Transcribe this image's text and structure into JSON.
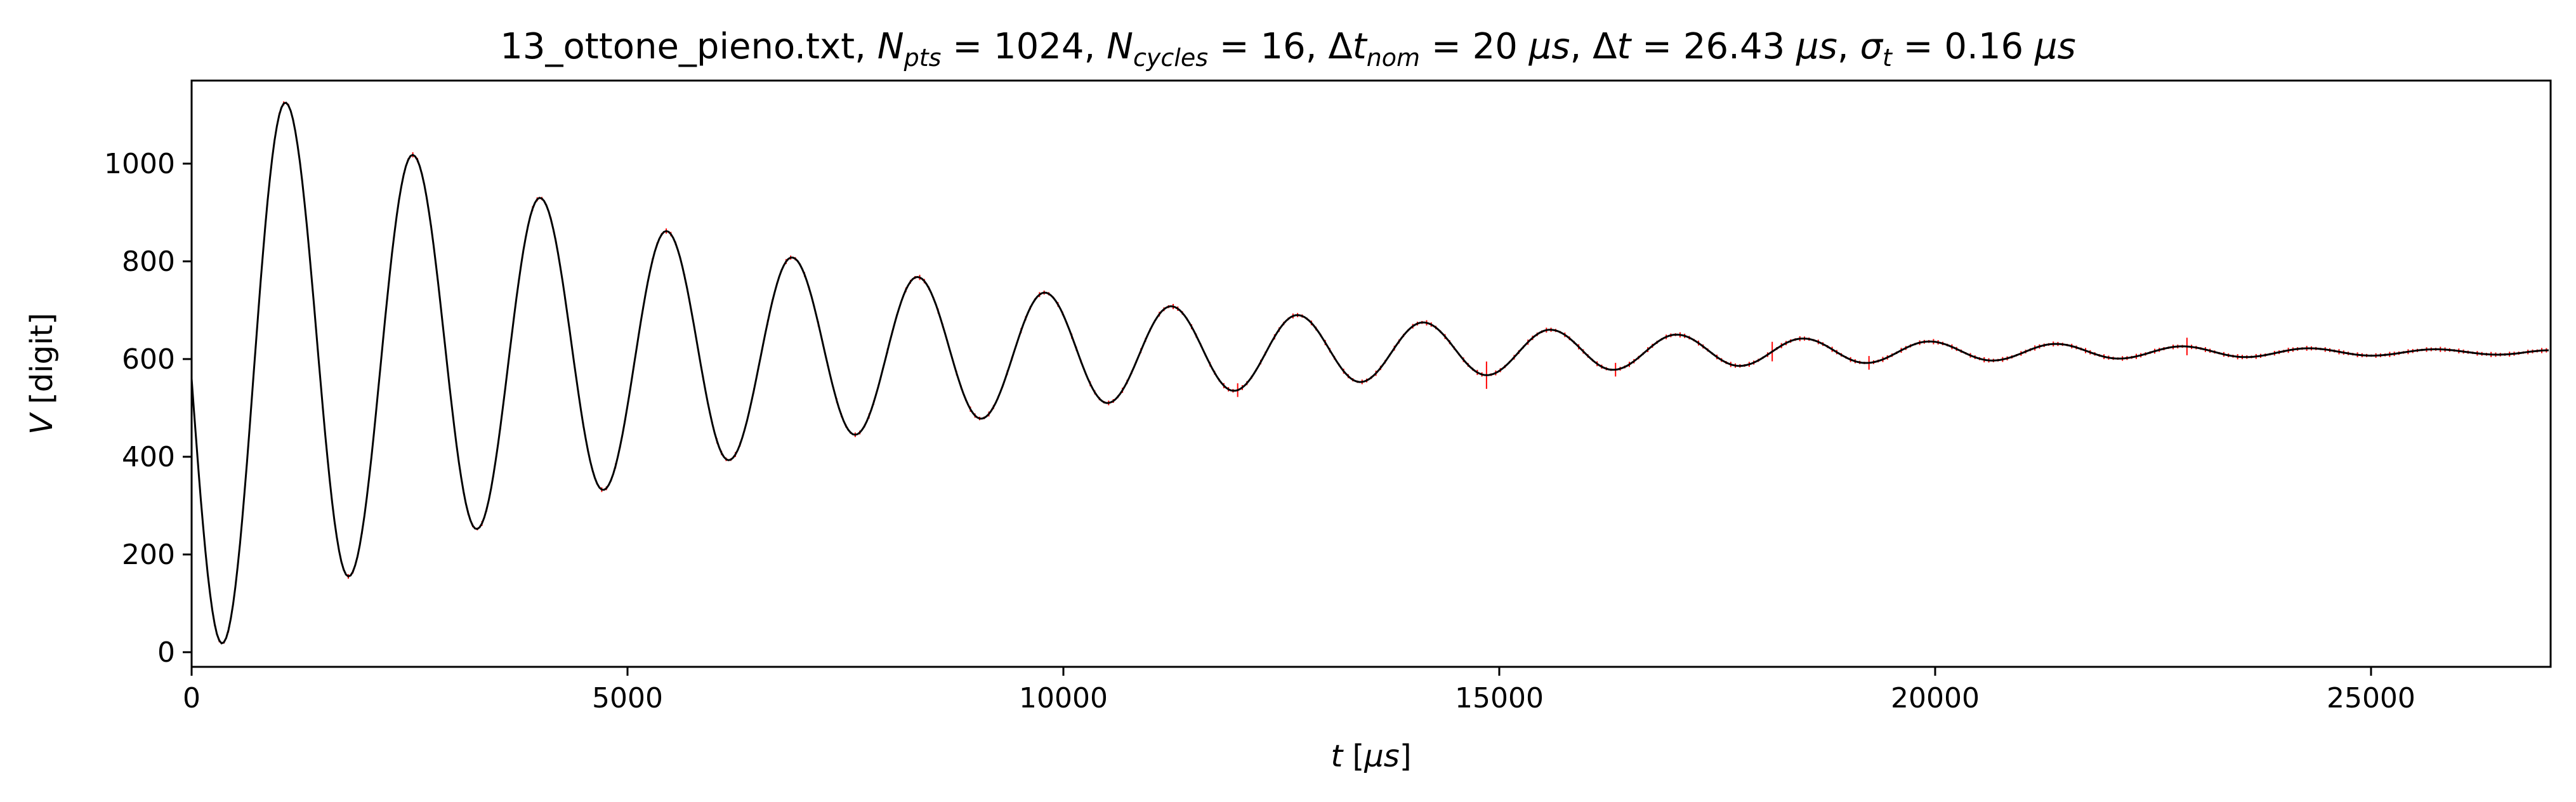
{
  "chart_data": {
    "type": "line",
    "title_parts": {
      "file": "13_ottone_pieno.txt",
      "npts_value": "1024",
      "ncycles_value": "16",
      "dtnom_value": "20",
      "dt_value": "26.43",
      "sigma_value": "0.16",
      "unit": "μs"
    },
    "xlabel": {
      "var": "t",
      "unit": "μs"
    },
    "ylabel": {
      "var": "V",
      "unit": "digit"
    },
    "xlim": [
      0,
      27060
    ],
    "ylim": [
      -30,
      1170
    ],
    "xticks": [
      0,
      5000,
      10000,
      15000,
      20000,
      25000
    ],
    "yticks": [
      0,
      200,
      400,
      600,
      800,
      1000
    ],
    "grid": false,
    "series": [
      {
        "type": "line",
        "color": "#000000",
        "signal": {
          "n_points": 1024,
          "sample_interval": 26.43,
          "start_t": 0,
          "start_value": 560,
          "baseline": 612,
          "maxima": [
            [
              1075,
              1125
            ],
            [
              2535,
              1018
            ],
            [
              3995,
              930
            ],
            [
              5445,
              862
            ],
            [
              6885,
              808
            ],
            [
              8325,
              768
            ],
            [
              9785,
              736
            ],
            [
              11235,
              708
            ],
            [
              12685,
              690
            ],
            [
              14125,
              675
            ],
            [
              15585,
              660
            ],
            [
              17035,
              650
            ],
            [
              18485,
              642
            ],
            [
              19935,
              636
            ],
            [
              21385,
              631
            ],
            [
              22835,
              626
            ],
            [
              24285,
              622
            ],
            [
              25735,
              620
            ]
          ],
          "minima": [
            [
              350,
              18
            ],
            [
              1800,
              155
            ],
            [
              3270,
              252
            ],
            [
              4720,
              332
            ],
            [
              6160,
              393
            ],
            [
              7610,
              445
            ],
            [
              9055,
              478
            ],
            [
              10505,
              510
            ],
            [
              11955,
              535
            ],
            [
              13405,
              553
            ],
            [
              14855,
              567
            ],
            [
              16305,
              578
            ],
            [
              17755,
              586
            ],
            [
              19205,
              592
            ],
            [
              20655,
              597
            ],
            [
              22105,
              601
            ],
            [
              23555,
              604
            ],
            [
              25005,
              607
            ],
            [
              26455,
              609
            ]
          ],
          "end": [
            27060,
            618
          ]
        }
      },
      {
        "type": "errorbars",
        "color": "#ff0000",
        "note": "vertical error bars on every sample, small; a few larger ones",
        "sigma_y": 4,
        "large_errors": [
          [
            14880,
            28
          ],
          [
            18150,
            20
          ],
          [
            22880,
            18
          ],
          [
            12020,
            14
          ],
          [
            16350,
            14
          ],
          [
            19260,
            14
          ]
        ]
      }
    ]
  }
}
